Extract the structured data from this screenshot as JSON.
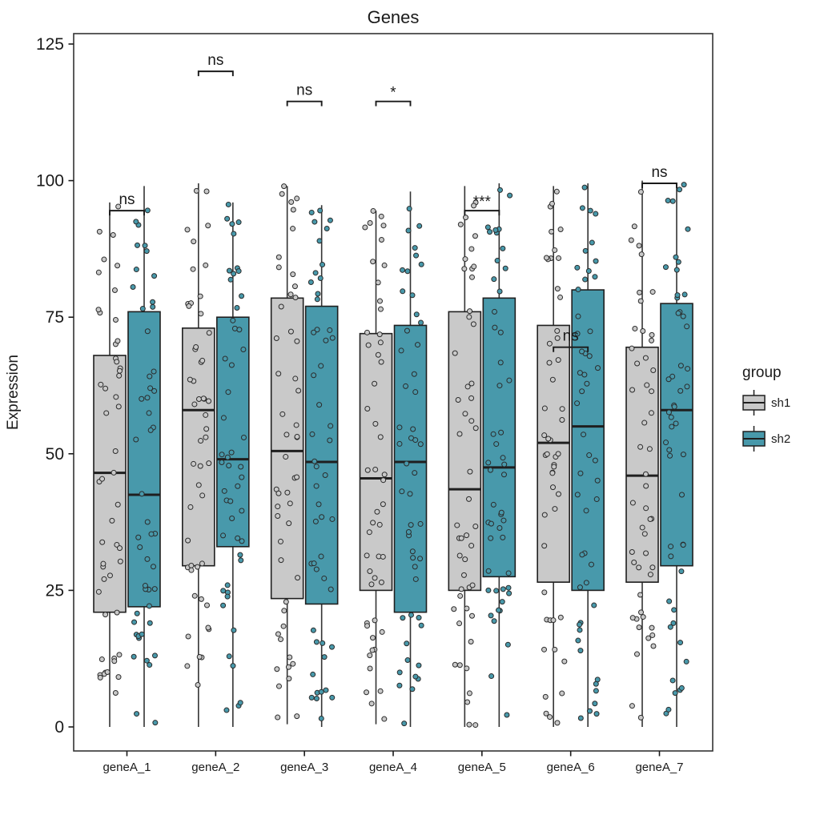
{
  "title": "Genes",
  "axes": {
    "y_label": "Expression",
    "y_ticks": [
      0,
      25,
      50,
      75,
      100,
      125
    ],
    "x_categories": [
      "geneA_1",
      "geneA_2",
      "geneA_3",
      "geneA_4",
      "geneA_5",
      "geneA_6",
      "geneA_7"
    ]
  },
  "legend": {
    "title": "group",
    "position": "right",
    "entries": [
      {
        "label": "sh1",
        "color": "#C9C9C9"
      },
      {
        "label": "sh2",
        "color": "#4899AB"
      }
    ]
  },
  "colors": {
    "sh1_fill": "#C9C9C9",
    "sh2_fill": "#4899AB",
    "box_stroke": "#1F1F1F",
    "whisker": "#333333",
    "panel_border": "#333333",
    "text": "#1a1a1a",
    "background": "#ffffff"
  },
  "chart_data": {
    "type": "boxplot",
    "title": "Genes",
    "xlabel": "",
    "ylabel": "Expression",
    "ylim": [
      -4.5,
      127
    ],
    "y_ticks": [
      0,
      25,
      50,
      75,
      100,
      125
    ],
    "grid": "off",
    "legend_position": "right",
    "categories": [
      "geneA_1",
      "geneA_2",
      "geneA_3",
      "geneA_4",
      "geneA_5",
      "geneA_6",
      "geneA_7"
    ],
    "series": [
      {
        "name": "sh1",
        "color": "#C9C9C9",
        "boxes": [
          {
            "min": 0,
            "q1": 21,
            "median": 46.5,
            "q3": 68,
            "max": 96
          },
          {
            "min": 0,
            "q1": 29.5,
            "median": 58,
            "q3": 73,
            "max": 99.5
          },
          {
            "min": 0.5,
            "q1": 23.5,
            "median": 50.5,
            "q3": 78.5,
            "max": 99
          },
          {
            "min": 0.5,
            "q1": 25,
            "median": 45.5,
            "q3": 72,
            "max": 94.5
          },
          {
            "min": 0,
            "q1": 25,
            "median": 43.5,
            "q3": 76,
            "max": 99
          },
          {
            "min": 0,
            "q1": 26.5,
            "median": 52,
            "q3": 73.5,
            "max": 99
          },
          {
            "min": 0,
            "q1": 26.5,
            "median": 46,
            "q3": 69.5,
            "max": 100
          }
        ]
      },
      {
        "name": "sh2",
        "color": "#4899AB",
        "boxes": [
          {
            "min": 0,
            "q1": 22,
            "median": 42.5,
            "q3": 76,
            "max": 99
          },
          {
            "min": 0,
            "q1": 33,
            "median": 49,
            "q3": 75,
            "max": 96
          },
          {
            "min": 0,
            "q1": 22.5,
            "median": 48.5,
            "q3": 77,
            "max": 95.5
          },
          {
            "min": 0,
            "q1": 21,
            "median": 48.5,
            "q3": 73.5,
            "max": 98
          },
          {
            "min": 0,
            "q1": 27.5,
            "median": 47.5,
            "q3": 78.5,
            "max": 99.5
          },
          {
            "min": 0,
            "q1": 25,
            "median": 55,
            "q3": 80,
            "max": 99.5
          },
          {
            "min": 0,
            "q1": 29.5,
            "median": 58,
            "q3": 77.5,
            "max": 99.5
          }
        ]
      }
    ],
    "significance": [
      {
        "category": "geneA_1",
        "label": "ns",
        "y": 94.5
      },
      {
        "category": "geneA_2",
        "label": "ns",
        "y": 120
      },
      {
        "category": "geneA_3",
        "label": "ns",
        "y": 114.5
      },
      {
        "category": "geneA_4",
        "label": "*",
        "y": 114.5
      },
      {
        "category": "geneA_5",
        "label": "***",
        "y": 94.5
      },
      {
        "category": "geneA_6",
        "label": "ns",
        "y": 69.5
      },
      {
        "category": "geneA_7",
        "label": "ns",
        "y": 99.5
      }
    ],
    "points_per_box": 50,
    "jitter_seed": 12345
  }
}
